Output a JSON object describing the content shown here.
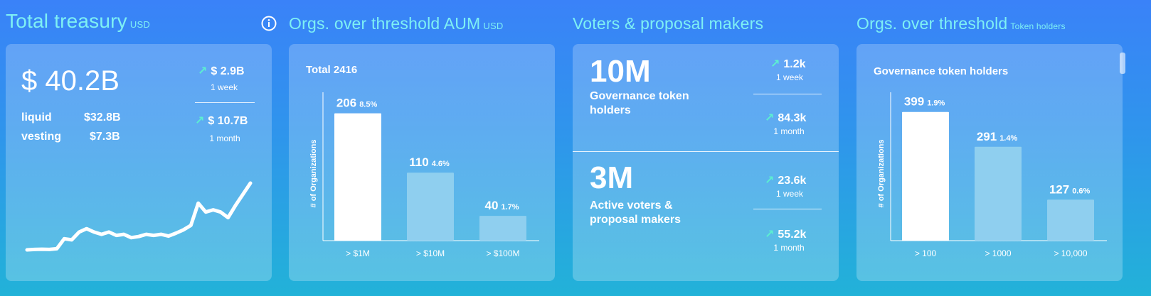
{
  "colors": {
    "accent_title": "#7ef0f4",
    "arrow_up": "#5cf0d0",
    "bar_primary": "#ffffff",
    "bar_secondary": "#8fcfef"
  },
  "treasury": {
    "title": "Total treasury",
    "unit": "USD",
    "info_icon": "info-icon",
    "total": "$ 40.2B",
    "liquid_label": "liquid",
    "liquid_value": "$32.8B",
    "vesting_label": "vesting",
    "vesting_value": "$7.3B",
    "change_week_value": "$ 2.9B",
    "change_week_period": "1 week",
    "change_month_value": "$ 10.7B",
    "change_month_period": "1 month",
    "sparkline": [
      3,
      3.2,
      3.3,
      3.2,
      3.5,
      8,
      7.5,
      11,
      12.5,
      11,
      10,
      11,
      9.5,
      10,
      8.5,
      9,
      10,
      9.5,
      10,
      9.2,
      10.5,
      12,
      14,
      24,
      20,
      21,
      20,
      17.5,
      23,
      28,
      33
    ]
  },
  "aum": {
    "title": "Orgs. over threshold AUM",
    "unit": "USD",
    "chart_data": {
      "type": "bar",
      "title": "Total 2416",
      "ylabel": "# of Organizations",
      "categories": [
        "> $1M",
        "> $10M",
        "> $100M"
      ],
      "values": [
        206,
        110,
        40
      ],
      "pct_labels": [
        "8.5%",
        "4.6%",
        "1.7%"
      ],
      "ylim": [
        0,
        240
      ]
    }
  },
  "voters": {
    "title": "Voters & proposal makers",
    "block1": {
      "value": "10M",
      "label": "Governance token holders",
      "week_value": "1.2k",
      "week_period": "1 week",
      "month_value": "84.3k",
      "month_period": "1 month"
    },
    "block2": {
      "value": "3M",
      "label": "Active voters & proposal makers",
      "week_value": "23.6k",
      "week_period": "1 week",
      "month_value": "55.2k",
      "month_period": "1 month"
    }
  },
  "holders": {
    "title": "Orgs. over threshold",
    "unit": "Token holders",
    "chart_data": {
      "type": "bar",
      "title": "Governance token holders",
      "ylabel": "# of Organizations",
      "categories": [
        "> 100",
        "> 1000",
        "> 10,000"
      ],
      "values": [
        399,
        291,
        127
      ],
      "pct_labels": [
        "1.9%",
        "1.4%",
        "0.6%"
      ],
      "ylim": [
        0,
        460
      ]
    }
  }
}
